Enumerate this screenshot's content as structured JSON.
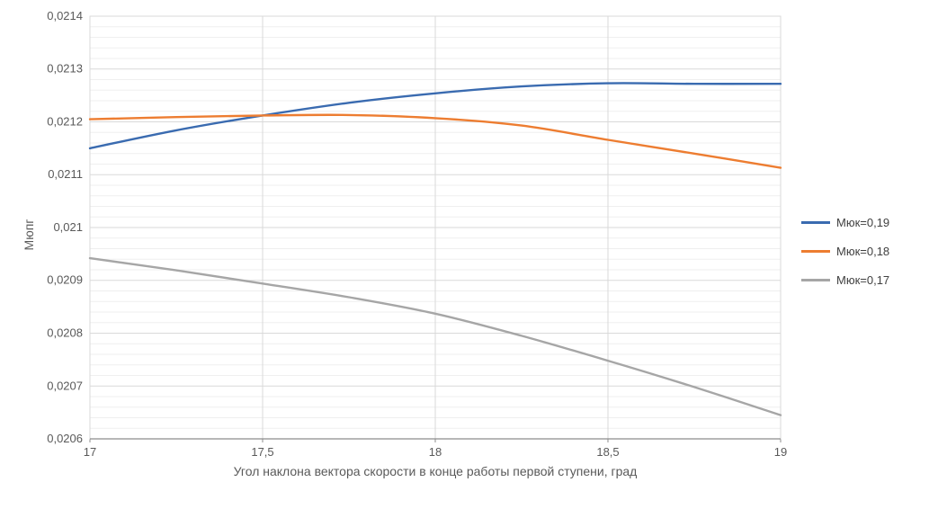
{
  "chart_data": {
    "type": "line",
    "title": "",
    "xlabel": "Угол наклона вектора скорости в конце работы первой ступени, град",
    "ylabel": "Мюпг",
    "xlim": [
      17,
      19
    ],
    "ylim": [
      0.0206,
      0.0214
    ],
    "grid": true,
    "legend_position": "right",
    "x_ticks": [
      17,
      17.5,
      18,
      18.5,
      19
    ],
    "x_tick_labels": [
      "17",
      "17,5",
      "18",
      "18,5",
      "19"
    ],
    "y_tick_step": 0.0001,
    "y_minor_step": 2e-05,
    "y_tick_labels": [
      "0,0206",
      "0,0207",
      "0,0208",
      "0,0209",
      "0,021",
      "0,0211",
      "0,0212",
      "0,0213",
      "0,0214"
    ],
    "x": [
      17,
      17.25,
      17.5,
      17.75,
      18,
      18.25,
      18.5,
      18.75,
      19
    ],
    "series": [
      {
        "name": "Мюк=0,19",
        "color": "#3A6BB0",
        "values": [
          0.02115,
          0.021184,
          0.021212,
          0.021236,
          0.021254,
          0.021267,
          0.021273,
          0.021272,
          0.021272
        ]
      },
      {
        "name": "Мюк=0,18",
        "color": "#ED7D31",
        "values": [
          0.021205,
          0.021209,
          0.021212,
          0.021213,
          0.021207,
          0.021193,
          0.021166,
          0.02114,
          0.021113
        ]
      },
      {
        "name": "Мюк=0,17",
        "color": "#A6A6A6",
        "values": [
          0.020942,
          0.020919,
          0.020894,
          0.020868,
          0.020837,
          0.020795,
          0.020748,
          0.020698,
          0.020645
        ]
      }
    ],
    "style": {
      "major_grid_color": "#D9D9D9",
      "minor_grid_color": "#EFEFEF",
      "axis_line_color": "#8C8C8C",
      "text_color": "#595959"
    }
  }
}
